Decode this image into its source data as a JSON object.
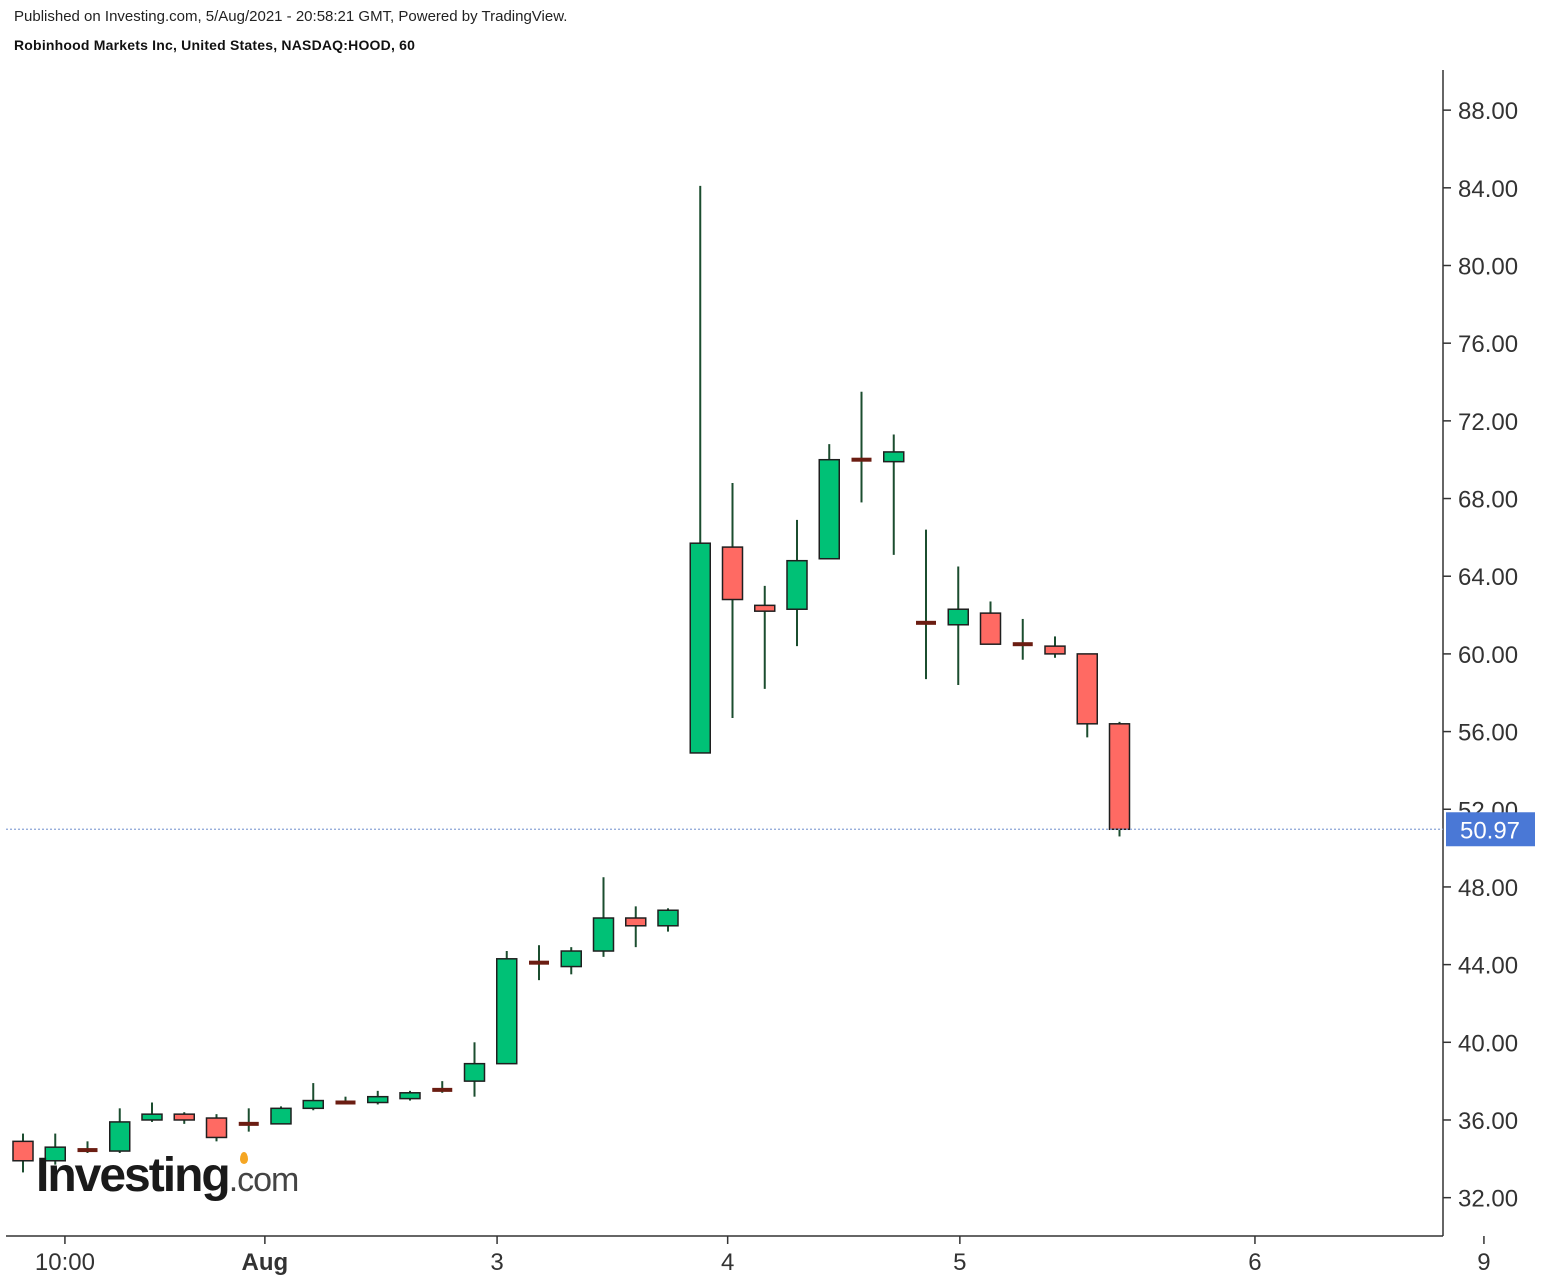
{
  "header": {
    "published": "Published on Investing.com, 5/Aug/2021 - 20:58:21 GMT, Powered by TradingView.",
    "symbol": "Robinhood Markets Inc, United States, NASDAQ:HOOD, 60"
  },
  "watermark": {
    "brand": "Investing",
    "suffix": ".com"
  },
  "colors": {
    "up": "#00c176",
    "down": "#ff6a63",
    "doji": "#6b1d12",
    "wick": "#1b4d2f",
    "border": "#1f1f1f",
    "price_line": "#8aa4d6",
    "price_label": "#4a78d6",
    "axis": "#333333"
  },
  "chart_data": {
    "type": "candlestick",
    "ylim": [
      30.0,
      90.0
    ],
    "y_ticks": [
      "88.00",
      "84.00",
      "80.00",
      "76.00",
      "72.00",
      "68.00",
      "64.00",
      "60.00",
      "56.00",
      "52.00",
      "48.00",
      "44.00",
      "40.00",
      "36.00",
      "32.00"
    ],
    "x_ticks": [
      {
        "label": "10:00",
        "bold": false,
        "index": 1.3
      },
      {
        "label": "Aug",
        "bold": true,
        "index": 7.5
      },
      {
        "label": "3",
        "bold": false,
        "index": 14.7
      },
      {
        "label": "4",
        "bold": false,
        "index": 21.85
      },
      {
        "label": "5",
        "bold": false,
        "index": 29.05
      },
      {
        "label": "6",
        "bold": false,
        "index": 38.2
      },
      {
        "label": "9",
        "bold": false,
        "index": 45.3
      }
    ],
    "last_price": "50.97",
    "candles": [
      {
        "o": 34.9,
        "h": 35.3,
        "l": 33.3,
        "c": 33.9
      },
      {
        "o": 33.9,
        "h": 35.3,
        "l": 33.7,
        "c": 34.6
      },
      {
        "o": 34.5,
        "h": 34.9,
        "l": 34.3,
        "c": 34.4
      },
      {
        "o": 34.4,
        "h": 36.6,
        "l": 34.3,
        "c": 35.9
      },
      {
        "o": 36.0,
        "h": 36.9,
        "l": 35.9,
        "c": 36.3
      },
      {
        "o": 36.3,
        "h": 36.4,
        "l": 35.8,
        "c": 36.0
      },
      {
        "o": 36.1,
        "h": 36.3,
        "l": 34.9,
        "c": 35.1
      },
      {
        "o": 35.8,
        "h": 36.6,
        "l": 35.4,
        "c": 35.8
      },
      {
        "o": 35.8,
        "h": 36.7,
        "l": 35.8,
        "c": 36.6
      },
      {
        "o": 36.6,
        "h": 37.9,
        "l": 36.5,
        "c": 37.0
      },
      {
        "o": 36.9,
        "h": 37.2,
        "l": 36.8,
        "c": 36.9
      },
      {
        "o": 36.9,
        "h": 37.5,
        "l": 36.8,
        "c": 37.2
      },
      {
        "o": 37.1,
        "h": 37.5,
        "l": 37.0,
        "c": 37.4
      },
      {
        "o": 37.5,
        "h": 38.0,
        "l": 37.4,
        "c": 37.6
      },
      {
        "o": 38.0,
        "h": 40.0,
        "l": 37.2,
        "c": 38.9
      },
      {
        "o": 38.9,
        "h": 44.7,
        "l": 38.9,
        "c": 44.3
      },
      {
        "o": 44.2,
        "h": 45.0,
        "l": 43.2,
        "c": 44.0
      },
      {
        "o": 43.9,
        "h": 44.9,
        "l": 43.5,
        "c": 44.7
      },
      {
        "o": 44.7,
        "h": 48.5,
        "l": 44.4,
        "c": 46.4
      },
      {
        "o": 46.4,
        "h": 47.0,
        "l": 44.9,
        "c": 46.0
      },
      {
        "o": 46.0,
        "h": 46.9,
        "l": 45.7,
        "c": 46.8
      },
      {
        "o": 54.9,
        "h": 84.1,
        "l": 54.9,
        "c": 65.7
      },
      {
        "o": 65.5,
        "h": 68.8,
        "l": 56.7,
        "c": 62.8
      },
      {
        "o": 62.5,
        "h": 63.5,
        "l": 58.2,
        "c": 62.2
      },
      {
        "o": 62.3,
        "h": 66.9,
        "l": 60.4,
        "c": 64.8
      },
      {
        "o": 64.9,
        "h": 70.8,
        "l": 64.9,
        "c": 70.0
      },
      {
        "o": 70.0,
        "h": 73.5,
        "l": 67.8,
        "c": 70.0
      },
      {
        "o": 69.9,
        "h": 71.3,
        "l": 65.1,
        "c": 70.4
      },
      {
        "o": 61.6,
        "h": 66.4,
        "l": 58.7,
        "c": 61.6
      },
      {
        "o": 61.5,
        "h": 64.5,
        "l": 58.4,
        "c": 62.3
      },
      {
        "o": 62.1,
        "h": 62.7,
        "l": 60.5,
        "c": 60.5
      },
      {
        "o": 60.5,
        "h": 61.8,
        "l": 59.7,
        "c": 60.5
      },
      {
        "o": 60.4,
        "h": 60.9,
        "l": 59.8,
        "c": 60.0
      },
      {
        "o": 60.0,
        "h": 60.0,
        "l": 55.7,
        "c": 56.4
      },
      {
        "o": 56.4,
        "h": 56.5,
        "l": 50.6,
        "c": 50.97
      }
    ]
  }
}
